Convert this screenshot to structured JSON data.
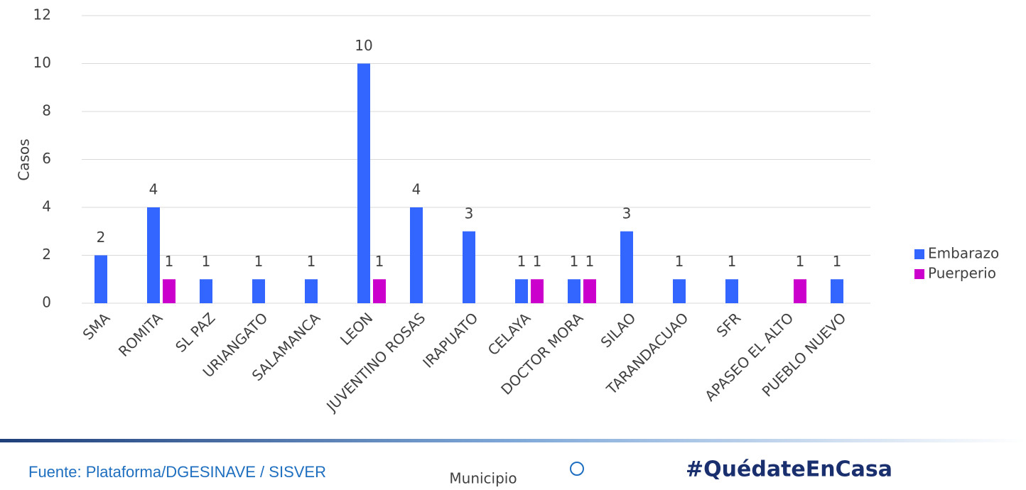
{
  "chart_data": {
    "type": "bar",
    "categories": [
      "SMA",
      "ROMITA",
      "SL PAZ",
      "URIANGATO",
      "SALAMANCA",
      "LEON",
      "JUVENTINO ROSAS",
      "IRAPUATO",
      "CELAYA",
      "DOCTOR MORA",
      "SILAO",
      "TARANDACUAO",
      "SFR",
      "APASEO EL ALTO",
      "PUEBLO NUEVO"
    ],
    "series": [
      {
        "name": "Embarazo",
        "color": "#3366ff",
        "values": [
          2,
          4,
          1,
          1,
          1,
          10,
          4,
          3,
          1,
          1,
          3,
          1,
          1,
          null,
          1
        ]
      },
      {
        "name": "Puerperio",
        "color": "#cc00cc",
        "values": [
          null,
          1,
          null,
          null,
          null,
          1,
          null,
          null,
          1,
          1,
          null,
          null,
          null,
          1,
          null
        ]
      }
    ],
    "xlabel": "Municipio",
    "ylabel": "Casos",
    "ylim": [
      0,
      12
    ],
    "yticks": [
      0,
      2,
      4,
      6,
      8,
      10,
      12
    ],
    "grid": true,
    "legend": "right"
  },
  "footer": {
    "source": "Fuente: Plataforma/DGESINAVE / SISVER",
    "hashtag": "#QuédateEnCasa"
  }
}
